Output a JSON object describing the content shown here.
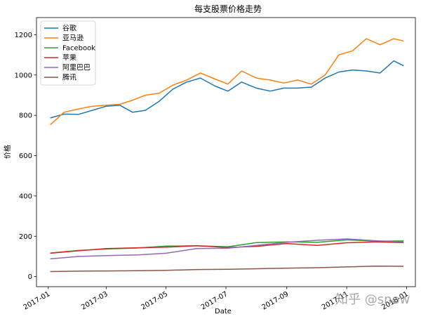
{
  "watermark": "知乎 @snow",
  "chart_data": {
    "type": "line",
    "title": "每支股票价格走势",
    "xlabel": "Date",
    "ylabel": "价格",
    "x_domain": [
      "2016-12-20",
      "2018-01-10"
    ],
    "ylim": [
      -50,
      1285
    ],
    "y_ticks": [
      0,
      200,
      400,
      600,
      800,
      1000,
      1200
    ],
    "x_ticks": [
      "2017-01",
      "2017-03",
      "2017-05",
      "2017-07",
      "2017-09",
      "2017-11",
      "2018-01"
    ],
    "legend_position": "upper-left",
    "grid": false,
    "series": [
      {
        "name": "谷歌",
        "color": "#1f77b4",
        "points": [
          [
            "2017-01-03",
            787
          ],
          [
            "2017-01-17",
            806
          ],
          [
            "2017-02-01",
            805
          ],
          [
            "2017-02-15",
            825
          ],
          [
            "2017-03-01",
            845
          ],
          [
            "2017-03-15",
            850
          ],
          [
            "2017-03-28",
            815
          ],
          [
            "2017-04-10",
            825
          ],
          [
            "2017-04-24",
            870
          ],
          [
            "2017-05-08",
            930
          ],
          [
            "2017-05-22",
            965
          ],
          [
            "2017-06-05",
            985
          ],
          [
            "2017-06-20",
            945
          ],
          [
            "2017-07-03",
            920
          ],
          [
            "2017-07-17",
            965
          ],
          [
            "2017-08-01",
            935
          ],
          [
            "2017-08-15",
            920
          ],
          [
            "2017-08-29",
            935
          ],
          [
            "2017-09-12",
            935
          ],
          [
            "2017-09-26",
            940
          ],
          [
            "2017-10-10",
            985
          ],
          [
            "2017-10-24",
            1015
          ],
          [
            "2017-11-07",
            1025
          ],
          [
            "2017-11-21",
            1020
          ],
          [
            "2017-12-05",
            1010
          ],
          [
            "2017-12-19",
            1070
          ],
          [
            "2017-12-29",
            1046
          ]
        ]
      },
      {
        "name": "亚马逊",
        "color": "#ff7f0e",
        "points": [
          [
            "2017-01-03",
            753
          ],
          [
            "2017-01-17",
            815
          ],
          [
            "2017-02-01",
            832
          ],
          [
            "2017-02-15",
            845
          ],
          [
            "2017-03-01",
            850
          ],
          [
            "2017-03-15",
            855
          ],
          [
            "2017-03-28",
            875
          ],
          [
            "2017-04-10",
            900
          ],
          [
            "2017-04-24",
            910
          ],
          [
            "2017-05-08",
            950
          ],
          [
            "2017-05-22",
            975
          ],
          [
            "2017-06-05",
            1010
          ],
          [
            "2017-06-20",
            980
          ],
          [
            "2017-07-03",
            955
          ],
          [
            "2017-07-17",
            1020
          ],
          [
            "2017-08-01",
            985
          ],
          [
            "2017-08-15",
            975
          ],
          [
            "2017-08-29",
            960
          ],
          [
            "2017-09-12",
            975
          ],
          [
            "2017-09-26",
            955
          ],
          [
            "2017-10-10",
            1000
          ],
          [
            "2017-10-24",
            1100
          ],
          [
            "2017-11-07",
            1120
          ],
          [
            "2017-11-21",
            1180
          ],
          [
            "2017-12-05",
            1150
          ],
          [
            "2017-12-19",
            1180
          ],
          [
            "2017-12-29",
            1169
          ]
        ]
      },
      {
        "name": "Facebook",
        "color": "#2ca02c",
        "points": [
          [
            "2017-01-03",
            117
          ],
          [
            "2017-02-01",
            130
          ],
          [
            "2017-03-01",
            137
          ],
          [
            "2017-04-03",
            142
          ],
          [
            "2017-05-01",
            151
          ],
          [
            "2017-06-01",
            153
          ],
          [
            "2017-07-03",
            148
          ],
          [
            "2017-08-01",
            169
          ],
          [
            "2017-09-01",
            172
          ],
          [
            "2017-10-02",
            170
          ],
          [
            "2017-11-01",
            182
          ],
          [
            "2017-12-01",
            176
          ],
          [
            "2017-12-29",
            177
          ]
        ]
      },
      {
        "name": "苹果",
        "color": "#d62728",
        "points": [
          [
            "2017-01-03",
            116
          ],
          [
            "2017-02-01",
            128
          ],
          [
            "2017-03-01",
            139
          ],
          [
            "2017-04-03",
            143
          ],
          [
            "2017-05-01",
            146
          ],
          [
            "2017-06-01",
            153
          ],
          [
            "2017-07-03",
            144
          ],
          [
            "2017-08-01",
            150
          ],
          [
            "2017-09-01",
            164
          ],
          [
            "2017-10-02",
            155
          ],
          [
            "2017-11-01",
            168
          ],
          [
            "2017-12-01",
            172
          ],
          [
            "2017-12-29",
            169
          ]
        ]
      },
      {
        "name": "阿里巴巴",
        "color": "#9467bd",
        "points": [
          [
            "2017-01-03",
            88
          ],
          [
            "2017-02-01",
            100
          ],
          [
            "2017-03-01",
            104
          ],
          [
            "2017-04-03",
            108
          ],
          [
            "2017-05-01",
            116
          ],
          [
            "2017-06-01",
            139
          ],
          [
            "2017-07-03",
            141
          ],
          [
            "2017-08-01",
            155
          ],
          [
            "2017-09-01",
            170
          ],
          [
            "2017-10-02",
            180
          ],
          [
            "2017-11-01",
            187
          ],
          [
            "2017-12-01",
            178
          ],
          [
            "2017-12-29",
            172
          ]
        ]
      },
      {
        "name": "腾讯",
        "color": "#8c564b",
        "points": [
          [
            "2017-01-03",
            25
          ],
          [
            "2017-02-01",
            27
          ],
          [
            "2017-03-01",
            28
          ],
          [
            "2017-04-03",
            29
          ],
          [
            "2017-05-01",
            31
          ],
          [
            "2017-06-01",
            35
          ],
          [
            "2017-07-03",
            36
          ],
          [
            "2017-08-01",
            39
          ],
          [
            "2017-09-01",
            42
          ],
          [
            "2017-10-02",
            44
          ],
          [
            "2017-11-01",
            48
          ],
          [
            "2017-12-01",
            52
          ],
          [
            "2017-12-29",
            51
          ]
        ]
      }
    ]
  }
}
